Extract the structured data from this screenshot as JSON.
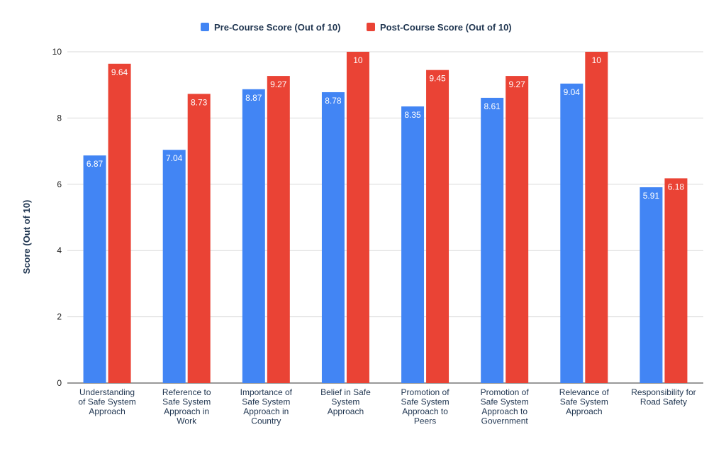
{
  "chart_data": {
    "type": "bar",
    "title": "",
    "xlabel": "",
    "ylabel": "Score (Out of 10)",
    "ylim": [
      0,
      10
    ],
    "yticks": [
      0,
      2,
      4,
      6,
      8,
      10
    ],
    "grid": true,
    "legend_position": "top-center",
    "categories": [
      [
        "Understanding",
        "of Safe System",
        "Approach"
      ],
      [
        "Reference to",
        "Safe System",
        "Approach in",
        "Work"
      ],
      [
        "Importance of",
        "Safe System",
        "Approach in",
        "Country"
      ],
      [
        "Belief in Safe",
        "System",
        "Approach"
      ],
      [
        "Promotion of",
        "Safe System",
        "Approach to",
        "Peers"
      ],
      [
        "Promotion of",
        "Safe System",
        "Approach to",
        "Government"
      ],
      [
        "Relevance of",
        "Safe System",
        "Approach"
      ],
      [
        "Responsibility for",
        "Road Safety"
      ]
    ],
    "series": [
      {
        "name": "Pre-Course Score (Out of 10)",
        "color": "#4285f4",
        "values": [
          6.87,
          7.04,
          8.87,
          8.78,
          8.35,
          8.61,
          9.04,
          5.91
        ],
        "labels": [
          "6.87",
          "7.04",
          "8.87",
          "8.78",
          "8.35",
          "8.61",
          "9.04",
          "5.91"
        ]
      },
      {
        "name": "Post-Course Score (Out of 10)",
        "color": "#ea4335",
        "values": [
          9.64,
          8.73,
          9.27,
          10,
          9.45,
          9.27,
          10,
          6.18
        ],
        "labels": [
          "9.64",
          "8.73",
          "9.27",
          "10",
          "9.45",
          "9.27",
          "10",
          "6.18"
        ]
      }
    ]
  }
}
